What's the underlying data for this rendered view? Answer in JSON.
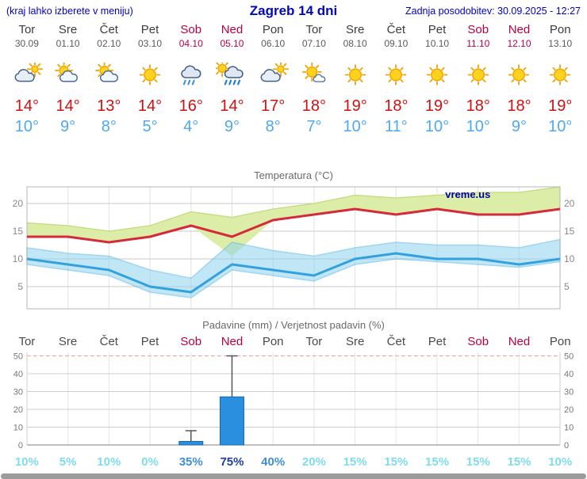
{
  "header": {
    "hint": "(kraj lahko izberete v meniju)",
    "title": "Zagreb 14 dni",
    "updated": "Zadnja posodobitev: 30.09.2025 - 12:27"
  },
  "colors": {
    "header_blue": "#0000cc",
    "weekend_red": "#bb0040",
    "temp_max_red": "#d01010",
    "temp_min_blue": "#4fa8f2",
    "band_green": "#dceda8",
    "band_blue": "#8fd2ef",
    "bar_blue": "#2b8fdf"
  },
  "days": [
    {
      "name": "Tor",
      "date": "30.09",
      "weekend": false,
      "icon": "cloudy",
      "tmax": "14",
      "tmin": "10",
      "prob": "10%",
      "prob_level": "low"
    },
    {
      "name": "Sre",
      "date": "01.10",
      "weekend": false,
      "icon": "partly-cloudy",
      "tmax": "14",
      "tmin": "9",
      "prob": "5%",
      "prob_level": "low"
    },
    {
      "name": "Čet",
      "date": "02.10",
      "weekend": false,
      "icon": "partly-cloudy",
      "tmax": "13",
      "tmin": "8",
      "prob": "10%",
      "prob_level": "low"
    },
    {
      "name": "Pet",
      "date": "03.10",
      "weekend": false,
      "icon": "sunny",
      "tmax": "14",
      "tmin": "5",
      "prob": "0%",
      "prob_level": "low"
    },
    {
      "name": "Sob",
      "date": "04.10",
      "weekend": true,
      "icon": "rain",
      "tmax": "16",
      "tmin": "4",
      "prob": "35%",
      "prob_level": "mid"
    },
    {
      "name": "Ned",
      "date": "05.10",
      "weekend": true,
      "icon": "rain-sun",
      "tmax": "14",
      "tmin": "9",
      "prob": "75%",
      "prob_level": "high"
    },
    {
      "name": "Pon",
      "date": "06.10",
      "weekend": false,
      "icon": "cloudy",
      "tmax": "17",
      "tmin": "8",
      "prob": "40%",
      "prob_level": "mid"
    },
    {
      "name": "Tor",
      "date": "07.10",
      "weekend": false,
      "icon": "mostly-sunny",
      "tmax": "18",
      "tmin": "7",
      "prob": "20%",
      "prob_level": "low"
    },
    {
      "name": "Sre",
      "date": "08.10",
      "weekend": false,
      "icon": "sunny",
      "tmax": "19",
      "tmin": "10",
      "prob": "15%",
      "prob_level": "low"
    },
    {
      "name": "Čet",
      "date": "09.10",
      "weekend": false,
      "icon": "sunny",
      "tmax": "18",
      "tmin": "11",
      "prob": "15%",
      "prob_level": "low"
    },
    {
      "name": "Pet",
      "date": "10.10",
      "weekend": false,
      "icon": "sunny",
      "tmax": "19",
      "tmin": "10",
      "prob": "15%",
      "prob_level": "low"
    },
    {
      "name": "Sob",
      "date": "11.10",
      "weekend": true,
      "icon": "sunny",
      "tmax": "18",
      "tmin": "10",
      "prob": "15%",
      "prob_level": "low"
    },
    {
      "name": "Ned",
      "date": "12.10",
      "weekend": true,
      "icon": "sunny",
      "tmax": "18",
      "tmin": "9",
      "prob": "15%",
      "prob_level": "low"
    },
    {
      "name": "Pon",
      "date": "13.10",
      "weekend": false,
      "icon": "sunny",
      "tmax": "19",
      "tmin": "10",
      "prob": "10%",
      "prob_level": "low"
    }
  ],
  "chart_data": [
    {
      "type": "area",
      "title": "Temperatura (°C)",
      "watermark": "vreme.us",
      "x_labels": [
        "Tor",
        "Sre",
        "Čet",
        "Pet",
        "Sob",
        "Ned",
        "Pon",
        "Tor",
        "Sre",
        "Čet",
        "Pet",
        "Sob",
        "Ned",
        "Pon"
      ],
      "ylim": [
        1,
        23
      ],
      "yticks": [
        5,
        10,
        15,
        20
      ],
      "series": [
        {
          "name": "max",
          "values": [
            14,
            14,
            13,
            14,
            16,
            14,
            17,
            18,
            19,
            18,
            19,
            18,
            18,
            19
          ]
        },
        {
          "name": "min",
          "values": [
            10,
            9,
            8,
            5,
            4,
            9,
            8,
            7,
            10,
            11,
            10,
            10,
            9,
            10
          ]
        },
        {
          "name": "max_band_upper",
          "values": [
            16.5,
            16,
            15,
            16,
            18.5,
            17.5,
            19,
            20,
            21.5,
            21,
            21.5,
            22,
            22,
            23
          ]
        },
        {
          "name": "max_band_lower",
          "values": [
            14,
            14,
            13,
            14,
            16,
            10.5,
            17,
            18,
            19,
            18,
            19,
            18,
            18,
            19
          ]
        },
        {
          "name": "min_band_upper",
          "values": [
            12,
            11,
            10.5,
            8,
            6.5,
            13,
            11.5,
            10.5,
            12,
            13,
            12.5,
            12.5,
            12,
            13.5
          ]
        },
        {
          "name": "min_band_lower",
          "values": [
            9,
            8,
            7,
            4,
            3,
            8,
            7,
            6,
            9,
            10,
            9.5,
            9,
            8.5,
            9.5
          ]
        }
      ]
    },
    {
      "type": "bar",
      "title": "Padavine (mm) / Verjetnost padavin (%)",
      "categories": [
        "Tor",
        "Sre",
        "Čet",
        "Pet",
        "Sob",
        "Ned",
        "Pon",
        "Tor",
        "Sre",
        "Čet",
        "Pet",
        "Sob",
        "Ned",
        "Pon"
      ],
      "values": [
        0,
        0,
        0,
        0,
        2,
        27,
        0,
        0,
        0,
        0,
        0,
        0,
        0,
        0
      ],
      "whisker_max": [
        0,
        0,
        0,
        0,
        8,
        50,
        0,
        0,
        0,
        0,
        0,
        0,
        0,
        0
      ],
      "probabilities": [
        "10%",
        "5%",
        "10%",
        "0%",
        "35%",
        "75%",
        "40%",
        "20%",
        "15%",
        "15%",
        "15%",
        "15%",
        "15%",
        "10%"
      ],
      "ylim": [
        0,
        52
      ],
      "yticks": [
        0,
        10,
        20,
        30,
        40,
        50
      ]
    }
  ]
}
